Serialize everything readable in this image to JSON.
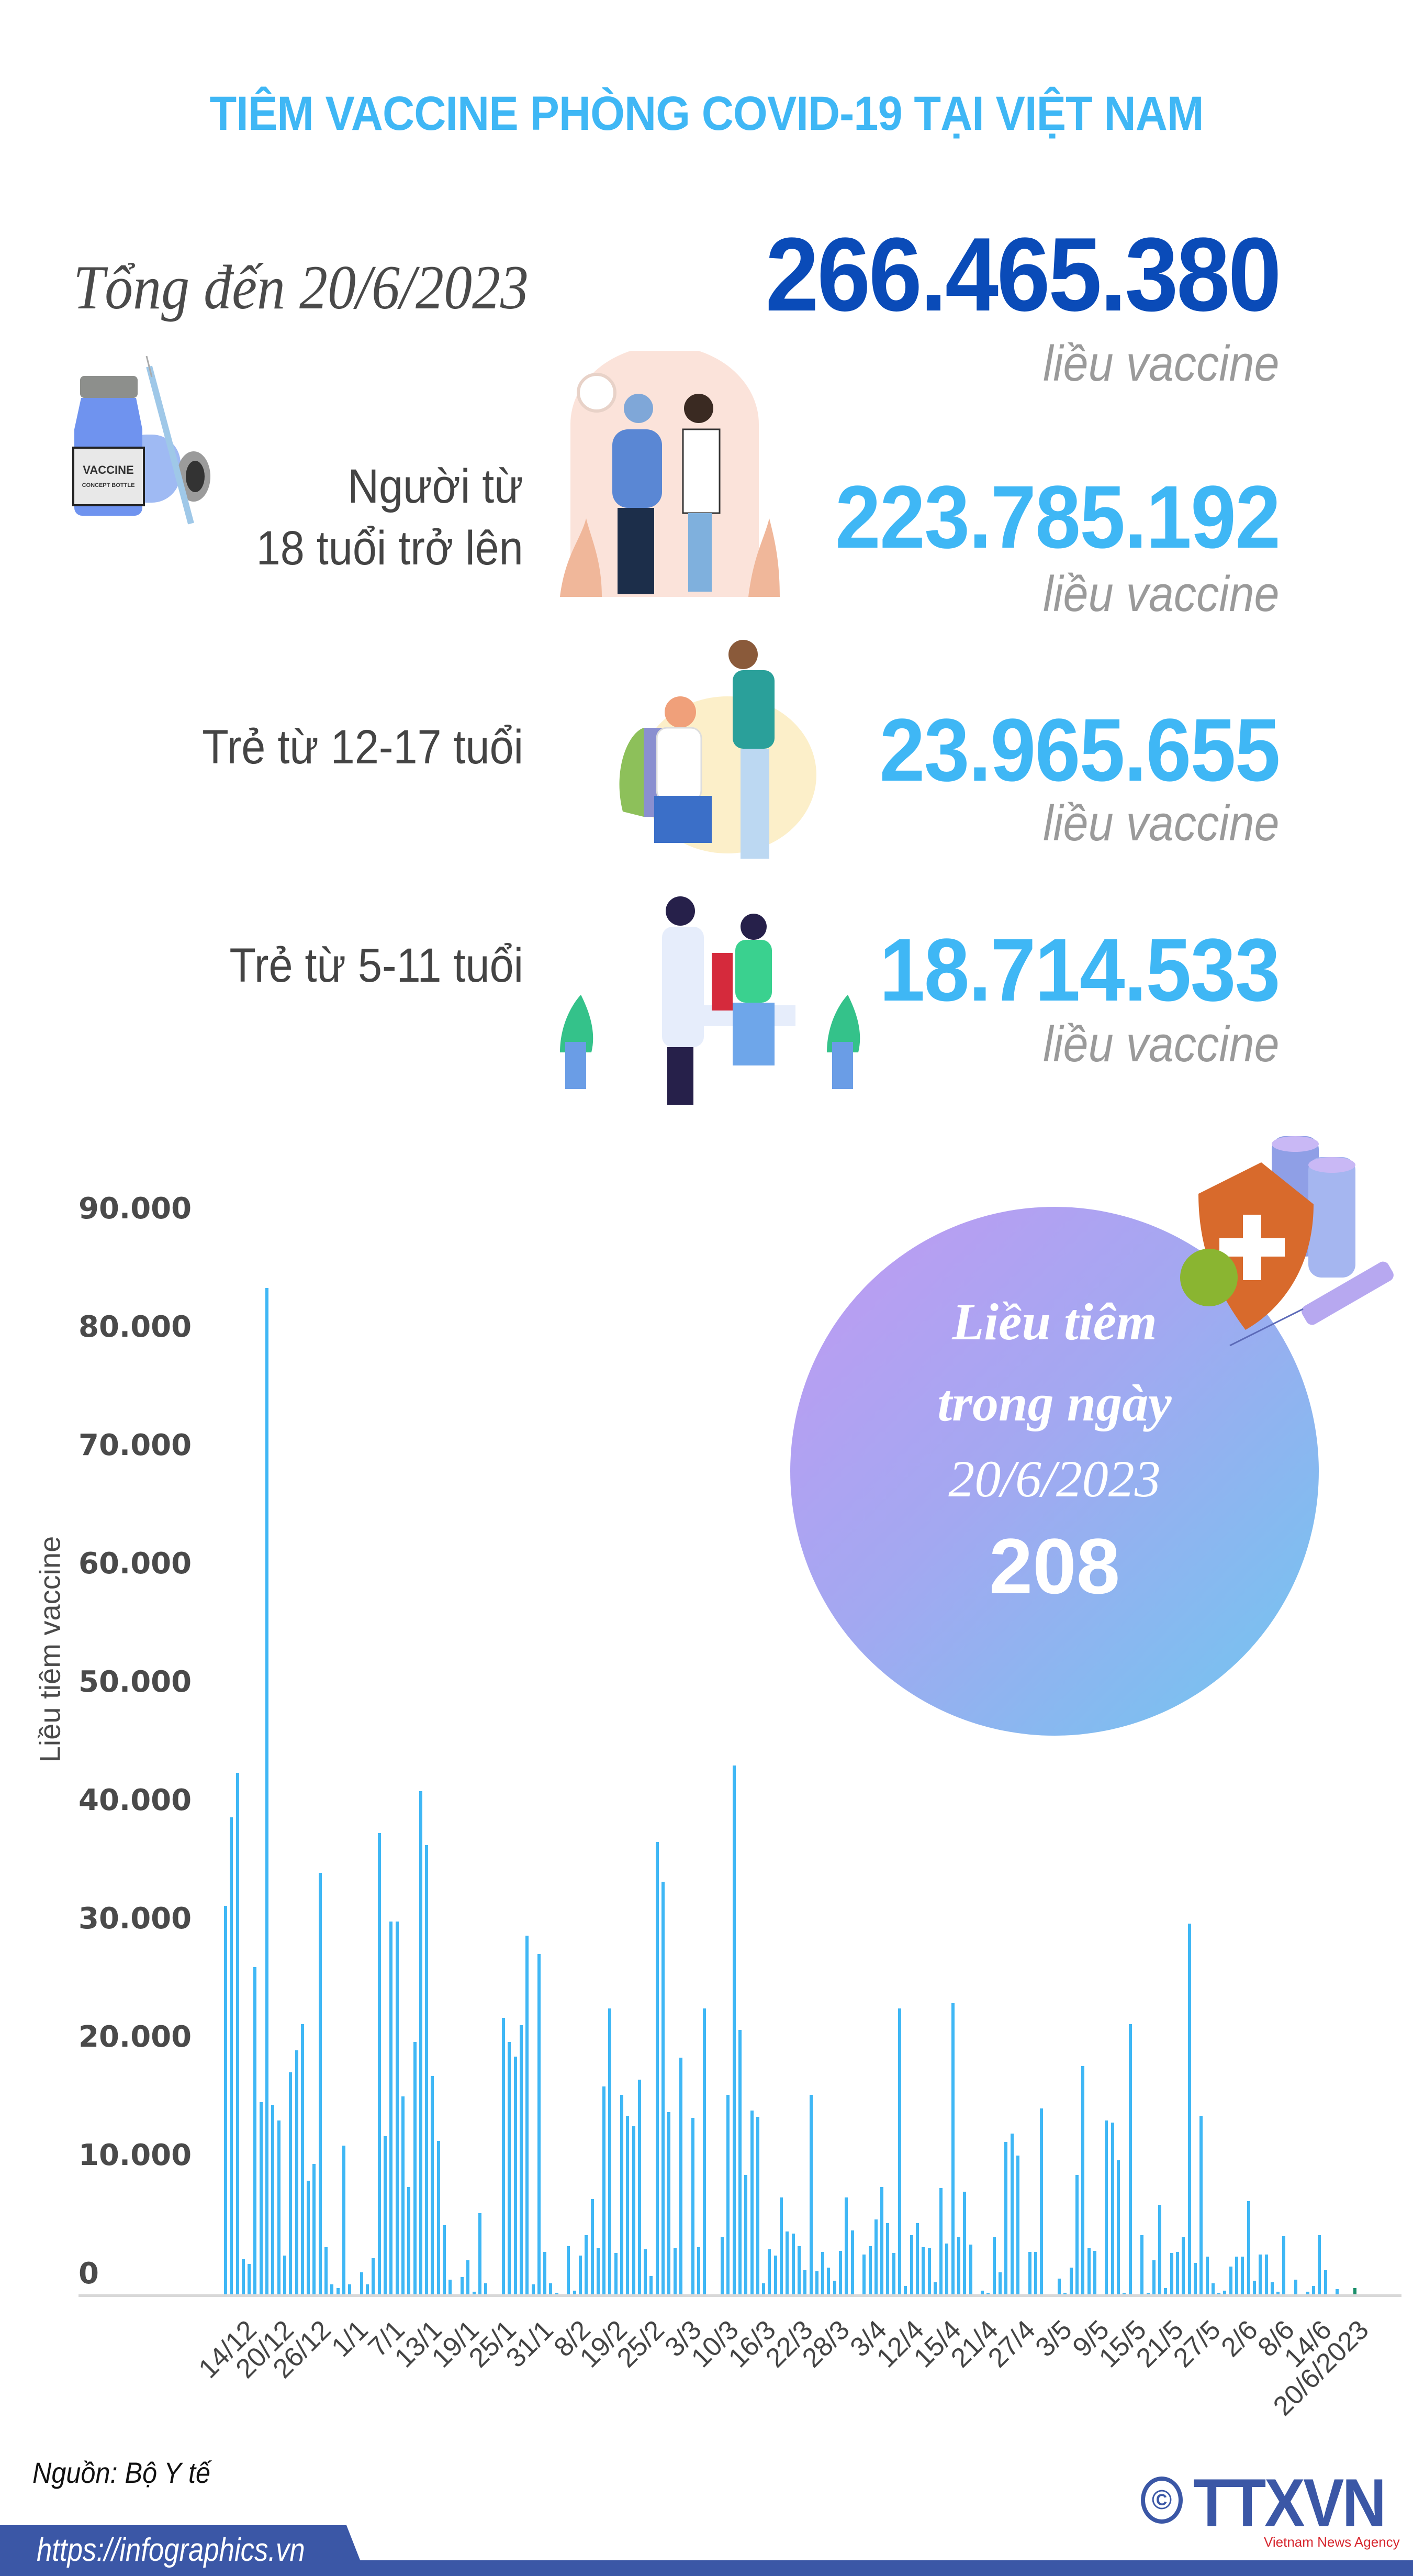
{
  "header": {
    "title": "TIÊM VACCINE PHÒNG COVID-19 TẠI VIỆT NAM"
  },
  "total": {
    "label": "Tổng đến 20/6/2023",
    "value": "266.465.380",
    "unit": "liều vaccine"
  },
  "groups": [
    {
      "label_line1": "Người từ",
      "label_line2": "18 tuổi trở lên",
      "value": "223.785.192",
      "unit": "liều vaccine"
    },
    {
      "label_line1": "Trẻ từ 12-17 tuổi",
      "label_line2": "",
      "value": "23.965.655",
      "unit": "liều vaccine"
    },
    {
      "label_line1": "Trẻ từ 5-11 tuổi",
      "label_line2": "",
      "value": "18.714.533",
      "unit": "liều vaccine"
    }
  ],
  "vial_icon": {
    "label_main": "VACCINE",
    "label_sub": "CONCEPT BOTTLE"
  },
  "bubble": {
    "line1": "Liều tiêm",
    "line2": "trong ngày",
    "line3": "20/6/2023",
    "value": "208"
  },
  "source": "Nguồn: Bộ Y tế",
  "footer": {
    "url": "https://infographics.vn",
    "logo": "TTXVN",
    "logo_sub": "Vietnam News Agency",
    "copyright": "©"
  },
  "colors": {
    "title": "#3fb7f5",
    "total": "#0a4bb8",
    "bar": "#3fb7f5",
    "highlight_bar": "#1a8f6a",
    "footer": "#3b57a6"
  },
  "chart_data": {
    "type": "bar",
    "title": "",
    "xlabel": "",
    "ylabel": "Liều tiêm vaccine",
    "ylim": [
      0,
      90000
    ],
    "yticks": [
      "0",
      "10.000",
      "20.000",
      "30.000",
      "40.000",
      "50.000",
      "60.000",
      "70.000",
      "80.000",
      "90.000"
    ],
    "grid": false,
    "legend": null,
    "x_tick_labels": [
      "14/12",
      "20/12",
      "26/12",
      "1/1",
      "7/1",
      "13/1",
      "19/1",
      "25/1",
      "31/1",
      "8/2",
      "19/2",
      "25/2",
      "3/3",
      "10/3",
      "16/3",
      "22/3",
      "28/3",
      "3/4",
      "12/4",
      "15/4",
      "21/4",
      "27/4",
      "3/5",
      "9/5",
      "15/5",
      "21/5",
      "27/5",
      "2/6",
      "8/6",
      "14/6",
      "20/6/2023"
    ],
    "highlight_last": true,
    "last_value": 208,
    "values": [
      32300,
      39600,
      43300,
      3000,
      2600,
      27200,
      16000,
      83500,
      15800,
      14500,
      3300,
      18500,
      20300,
      22500,
      9500,
      10900,
      35000,
      4000,
      900,
      600,
      12400,
      900,
      100,
      1900,
      900,
      3100,
      38300,
      13200,
      31000,
      31000,
      16500,
      9000,
      21000,
      41800,
      37300,
      18200,
      12800,
      5800,
      1300,
      0,
      1500,
      2900,
      300,
      6800,
      1000,
      0,
      0,
      23000,
      21000,
      19800,
      22400,
      29800,
      900,
      28300,
      3600,
      1000,
      200,
      0,
      4100,
      400,
      3300,
      5000,
      8000,
      3900,
      17300,
      23800,
      3500,
      16600,
      14900,
      14000,
      17900,
      3800,
      1600,
      37600,
      34300,
      15200,
      3900,
      19700,
      0,
      14700,
      4000,
      23800,
      0,
      0,
      4800,
      16600,
      43900,
      22000,
      10000,
      15300,
      14800,
      1000,
      3800,
      3300,
      8100,
      5300,
      5100,
      4100,
      2100,
      16600,
      2000,
      3600,
      2300,
      1200,
      3700,
      8100,
      5400,
      0,
      3400,
      4100,
      6300,
      9000,
      6000,
      3500,
      23800,
      800,
      5000,
      6000,
      4000,
      3900,
      1100,
      8900,
      4300,
      24200,
      4800,
      8600,
      4200,
      0,
      400,
      200,
      4800,
      1900,
      12700,
      13400,
      11600,
      0,
      3600,
      3600,
      15500,
      100,
      0,
      1400,
      200,
      2300,
      10000,
      19000,
      3900,
      3700,
      0,
      14500,
      14300,
      11200,
      200,
      22500,
      0,
      5000,
      200,
      2900,
      7500,
      600,
      3500,
      3600,
      4800,
      30800,
      2700,
      14900,
      3200,
      1000,
      200,
      400,
      2400,
      3200,
      3200,
      7800,
      1200,
      3400,
      3400,
      1100,
      300,
      4900,
      0,
      1300,
      0,
      300,
      800,
      5000,
      2100,
      0,
      500,
      0,
      0,
      208
    ]
  }
}
